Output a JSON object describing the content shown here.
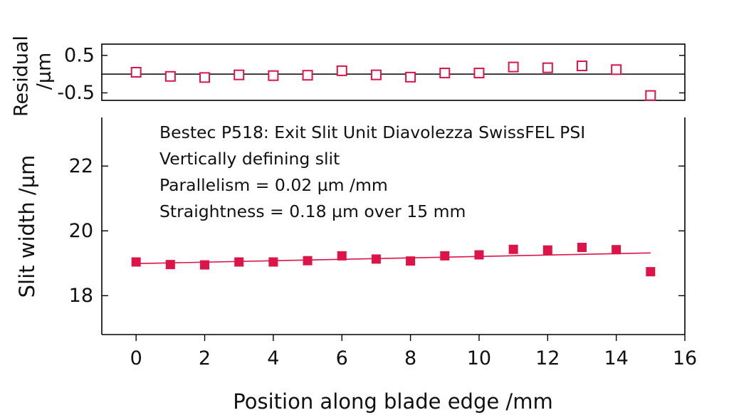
{
  "chart_data": [
    {
      "type": "scatter",
      "panel": "residual",
      "ylabel_line1": "Residual",
      "ylabel_line2": "/µm",
      "xlim": [
        -1,
        16
      ],
      "ylim": [
        -0.7,
        0.8
      ],
      "yticks": [
        0.5,
        -0.5
      ],
      "ytick_labels": [
        "0.5",
        "-0.5"
      ],
      "zero_line": 0,
      "marker": "open-square",
      "color": "#dc1448",
      "x": [
        0,
        1,
        2,
        3,
        4,
        5,
        6,
        7,
        8,
        9,
        10,
        11,
        12,
        13,
        14,
        15
      ],
      "values": [
        0.05,
        -0.06,
        -0.09,
        -0.02,
        -0.04,
        -0.03,
        0.09,
        -0.02,
        -0.08,
        0.03,
        0.03,
        0.19,
        0.17,
        0.22,
        0.12,
        -0.57
      ]
    },
    {
      "type": "scatter",
      "panel": "main",
      "xlabel": "Position along blade edge /mm",
      "ylabel": "Slit width /µm",
      "xlim": [
        -1,
        16
      ],
      "ylim": [
        16.8,
        23.5
      ],
      "xticks": [
        0,
        2,
        4,
        6,
        8,
        10,
        12,
        14,
        16
      ],
      "xtick_labels": [
        "0",
        "2",
        "4",
        "6",
        "8",
        "10",
        "12",
        "14",
        "16"
      ],
      "yticks": [
        18,
        20,
        22
      ],
      "ytick_labels": [
        "18",
        "20",
        "22"
      ],
      "marker": "filled-square",
      "color": "#dc1448",
      "x": [
        0,
        1,
        2,
        3,
        4,
        5,
        6,
        7,
        8,
        9,
        10,
        11,
        12,
        13,
        14,
        15
      ],
      "values": [
        19.04,
        18.96,
        18.95,
        19.04,
        19.04,
        19.08,
        19.23,
        19.13,
        19.07,
        19.23,
        19.26,
        19.43,
        19.41,
        19.49,
        19.42,
        18.74
      ],
      "fit_line": {
        "x": [
          0,
          15
        ],
        "y": [
          18.99,
          19.32
        ]
      },
      "annotations": [
        "Bestec P518: Exit Slit Unit Diavolezza SwissFEL PSI",
        "Vertically defining slit",
        "Parallelism = 0.02 µm /mm",
        "Straightness = 0.18 µm over 15 mm"
      ],
      "legend": "none",
      "grid": false
    }
  ]
}
